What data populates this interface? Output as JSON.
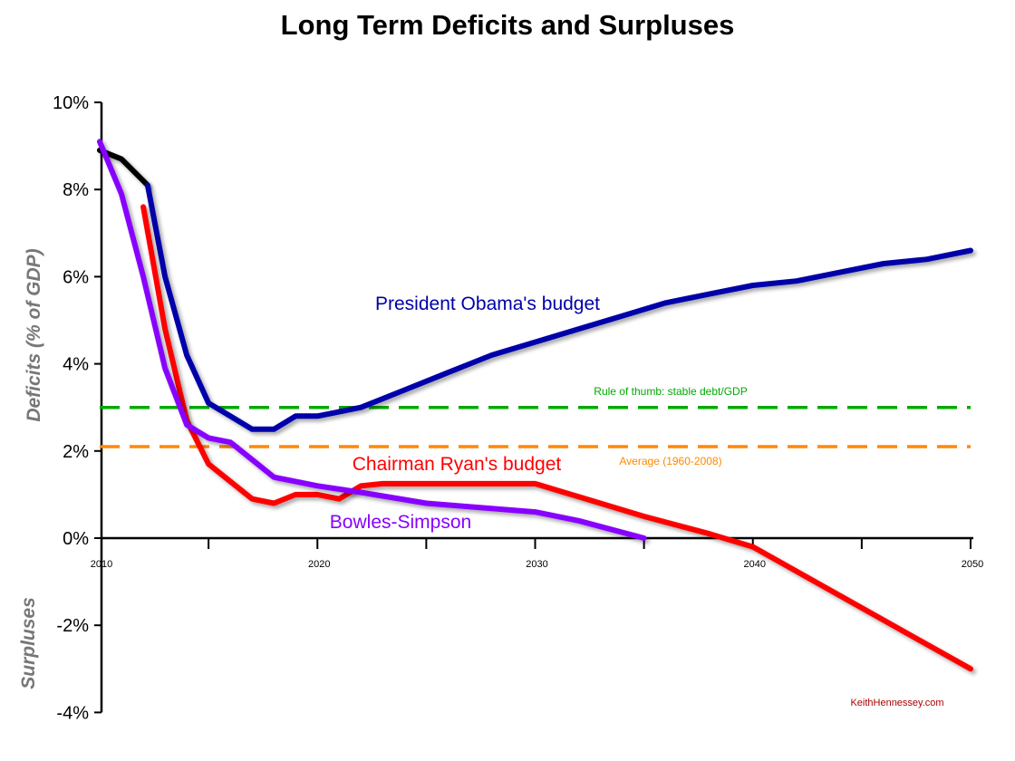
{
  "chart_data": {
    "type": "line",
    "title": "Long Term Deficits and Surpluses",
    "ylabel": "Deficits (% of GDP)",
    "ylabel_lower": "Surpluses",
    "xlim": [
      2010,
      2050
    ],
    "ylim": [
      -4,
      10
    ],
    "x_ticks": [
      2010,
      2020,
      2030,
      2040,
      2050
    ],
    "x_tick_labels": [
      "2010",
      "2020",
      "2030",
      "2040",
      "2050"
    ],
    "y_ticks": [
      10,
      8,
      6,
      4,
      2,
      0,
      -2,
      -4
    ],
    "y_tick_labels": [
      "10%",
      "8%",
      "6%",
      "4%",
      "2%",
      "0%",
      "-2%",
      "-4%"
    ],
    "grid": false,
    "legend": "none",
    "source": "KeithHennessey.com",
    "series": [
      {
        "name": "President Obama's budget",
        "color": "#0000aa",
        "points": [
          [
            2012.2,
            8.1
          ],
          [
            2013,
            6.0
          ],
          [
            2014,
            4.2
          ],
          [
            2015,
            3.1
          ],
          [
            2016,
            2.8
          ],
          [
            2017,
            2.5
          ],
          [
            2018,
            2.5
          ],
          [
            2019,
            2.8
          ],
          [
            2020,
            2.8
          ],
          [
            2022,
            3.0
          ],
          [
            2024,
            3.4
          ],
          [
            2026,
            3.8
          ],
          [
            2028,
            4.2
          ],
          [
            2030,
            4.5
          ],
          [
            2032,
            4.8
          ],
          [
            2034,
            5.1
          ],
          [
            2036,
            5.4
          ],
          [
            2038,
            5.6
          ],
          [
            2040,
            5.8
          ],
          [
            2042,
            5.9
          ],
          [
            2044,
            6.1
          ],
          [
            2046,
            6.3
          ],
          [
            2048,
            6.4
          ],
          [
            2050,
            6.6
          ]
        ]
      },
      {
        "name": "",
        "color": "#000000",
        "points": [
          [
            2010,
            8.9
          ],
          [
            2011,
            8.7
          ],
          [
            2012.2,
            8.1
          ]
        ]
      },
      {
        "name": "Chairman Ryan's budget",
        "color": "#ff0000",
        "points": [
          [
            2012,
            7.6
          ],
          [
            2013,
            4.8
          ],
          [
            2014,
            2.7
          ],
          [
            2015,
            1.7
          ],
          [
            2016,
            1.3
          ],
          [
            2017,
            0.9
          ],
          [
            2018,
            0.8
          ],
          [
            2019,
            1.0
          ],
          [
            2020,
            1.0
          ],
          [
            2021,
            0.9
          ],
          [
            2022,
            1.2
          ],
          [
            2023,
            1.25
          ],
          [
            2025,
            1.25
          ],
          [
            2028,
            1.25
          ],
          [
            2030,
            1.25
          ],
          [
            2035,
            0.5
          ],
          [
            2038,
            0.1
          ],
          [
            2040,
            -0.2
          ],
          [
            2045,
            -1.6
          ],
          [
            2050,
            -3.0
          ]
        ]
      },
      {
        "name": "Bowles-Simpson",
        "color": "#8800ff",
        "points": [
          [
            2010,
            9.1
          ],
          [
            2011,
            7.9
          ],
          [
            2012,
            6.0
          ],
          [
            2013,
            3.9
          ],
          [
            2014,
            2.6
          ],
          [
            2015,
            2.3
          ],
          [
            2016,
            2.2
          ],
          [
            2017,
            1.8
          ],
          [
            2018,
            1.4
          ],
          [
            2020,
            1.2
          ],
          [
            2022,
            1.05
          ],
          [
            2025,
            0.8
          ],
          [
            2030,
            0.6
          ],
          [
            2032,
            0.4
          ],
          [
            2035,
            0.0
          ]
        ]
      }
    ],
    "reference_lines": [
      {
        "name": "Rule of thumb: stable debt/GDP",
        "value": 3.0,
        "color": "#00aa00"
      },
      {
        "name": "Average (1960-2008)",
        "value": 2.1,
        "color": "#ff8800"
      }
    ]
  }
}
